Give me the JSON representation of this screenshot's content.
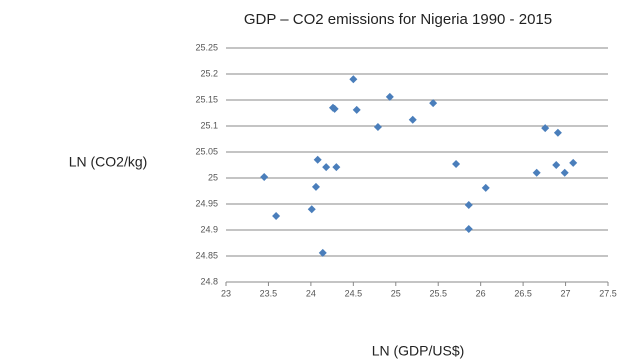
{
  "chart_data": {
    "type": "scatter",
    "title": "GDP – CO2 emissions for Nigeria 1990 - 2015",
    "x_label": "LN (GDP/US$)",
    "y_label": "LN (CO2/kg)",
    "color": "#4a7ebb",
    "grid": true,
    "xlim": [
      23,
      27.5
    ],
    "xticks": [
      23,
      23.5,
      24,
      24.5,
      25,
      25.5,
      26,
      26.5,
      27,
      27.5
    ],
    "ylim": [
      24.8,
      25.25
    ],
    "yticks": [
      24.8,
      24.85,
      24.9,
      24.95,
      25,
      25.05,
      25.1,
      25.15,
      25.2,
      25.25
    ],
    "x": [
      23.45,
      23.59,
      24.01,
      24.06,
      24.08,
      24.14,
      24.18,
      24.26,
      24.28,
      24.3,
      24.5,
      24.54,
      24.79,
      24.93,
      25.2,
      25.44,
      25.71,
      25.86,
      25.86,
      26.06,
      26.66,
      26.76,
      26.91,
      26.89,
      26.99,
      27.09
    ],
    "y": [
      25.002,
      24.927,
      24.94,
      24.983,
      25.035,
      24.856,
      25.021,
      25.135,
      25.133,
      25.021,
      25.19,
      25.131,
      25.098,
      25.156,
      25.112,
      25.144,
      25.027,
      24.948,
      24.902,
      24.981,
      25.01,
      25.096,
      25.087,
      25.025,
      25.01,
      25.029
    ]
  }
}
